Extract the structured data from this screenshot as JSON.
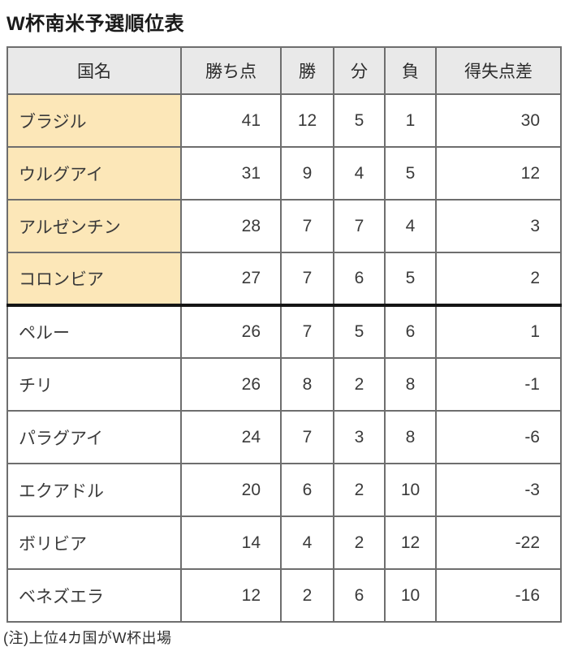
{
  "title": "W杯南米予選順位表",
  "note": "(注)上位4カ国がW杯出場",
  "colors": {
    "qualified_bg": "#fce7b8",
    "header_bg": "#e9e9e9",
    "border": "#6e6e6e",
    "outer_border": "#3a3a3a",
    "cutoff_line": "#151515"
  },
  "table": {
    "columns": [
      "国名",
      "勝ち点",
      "勝",
      "分",
      "負",
      "得失点差"
    ],
    "qualified_count": 4,
    "rows": [
      {
        "country": "ブラジル",
        "points": "41",
        "win": "12",
        "draw": "5",
        "loss": "1",
        "gd": "30"
      },
      {
        "country": "ウルグアイ",
        "points": "31",
        "win": "9",
        "draw": "4",
        "loss": "5",
        "gd": "12"
      },
      {
        "country": "アルゼンチン",
        "points": "28",
        "win": "7",
        "draw": "7",
        "loss": "4",
        "gd": "3"
      },
      {
        "country": "コロンビア",
        "points": "27",
        "win": "7",
        "draw": "6",
        "loss": "5",
        "gd": "2"
      },
      {
        "country": "ペルー",
        "points": "26",
        "win": "7",
        "draw": "5",
        "loss": "6",
        "gd": "1"
      },
      {
        "country": "チリ",
        "points": "26",
        "win": "8",
        "draw": "2",
        "loss": "8",
        "gd": "-1"
      },
      {
        "country": "パラグアイ",
        "points": "24",
        "win": "7",
        "draw": "3",
        "loss": "8",
        "gd": "-6"
      },
      {
        "country": "エクアドル",
        "points": "20",
        "win": "6",
        "draw": "2",
        "loss": "10",
        "gd": "-3"
      },
      {
        "country": "ボリビア",
        "points": "14",
        "win": "4",
        "draw": "2",
        "loss": "12",
        "gd": "-22"
      },
      {
        "country": "ベネズエラ",
        "points": "12",
        "win": "2",
        "draw": "6",
        "loss": "10",
        "gd": "-16"
      }
    ]
  }
}
